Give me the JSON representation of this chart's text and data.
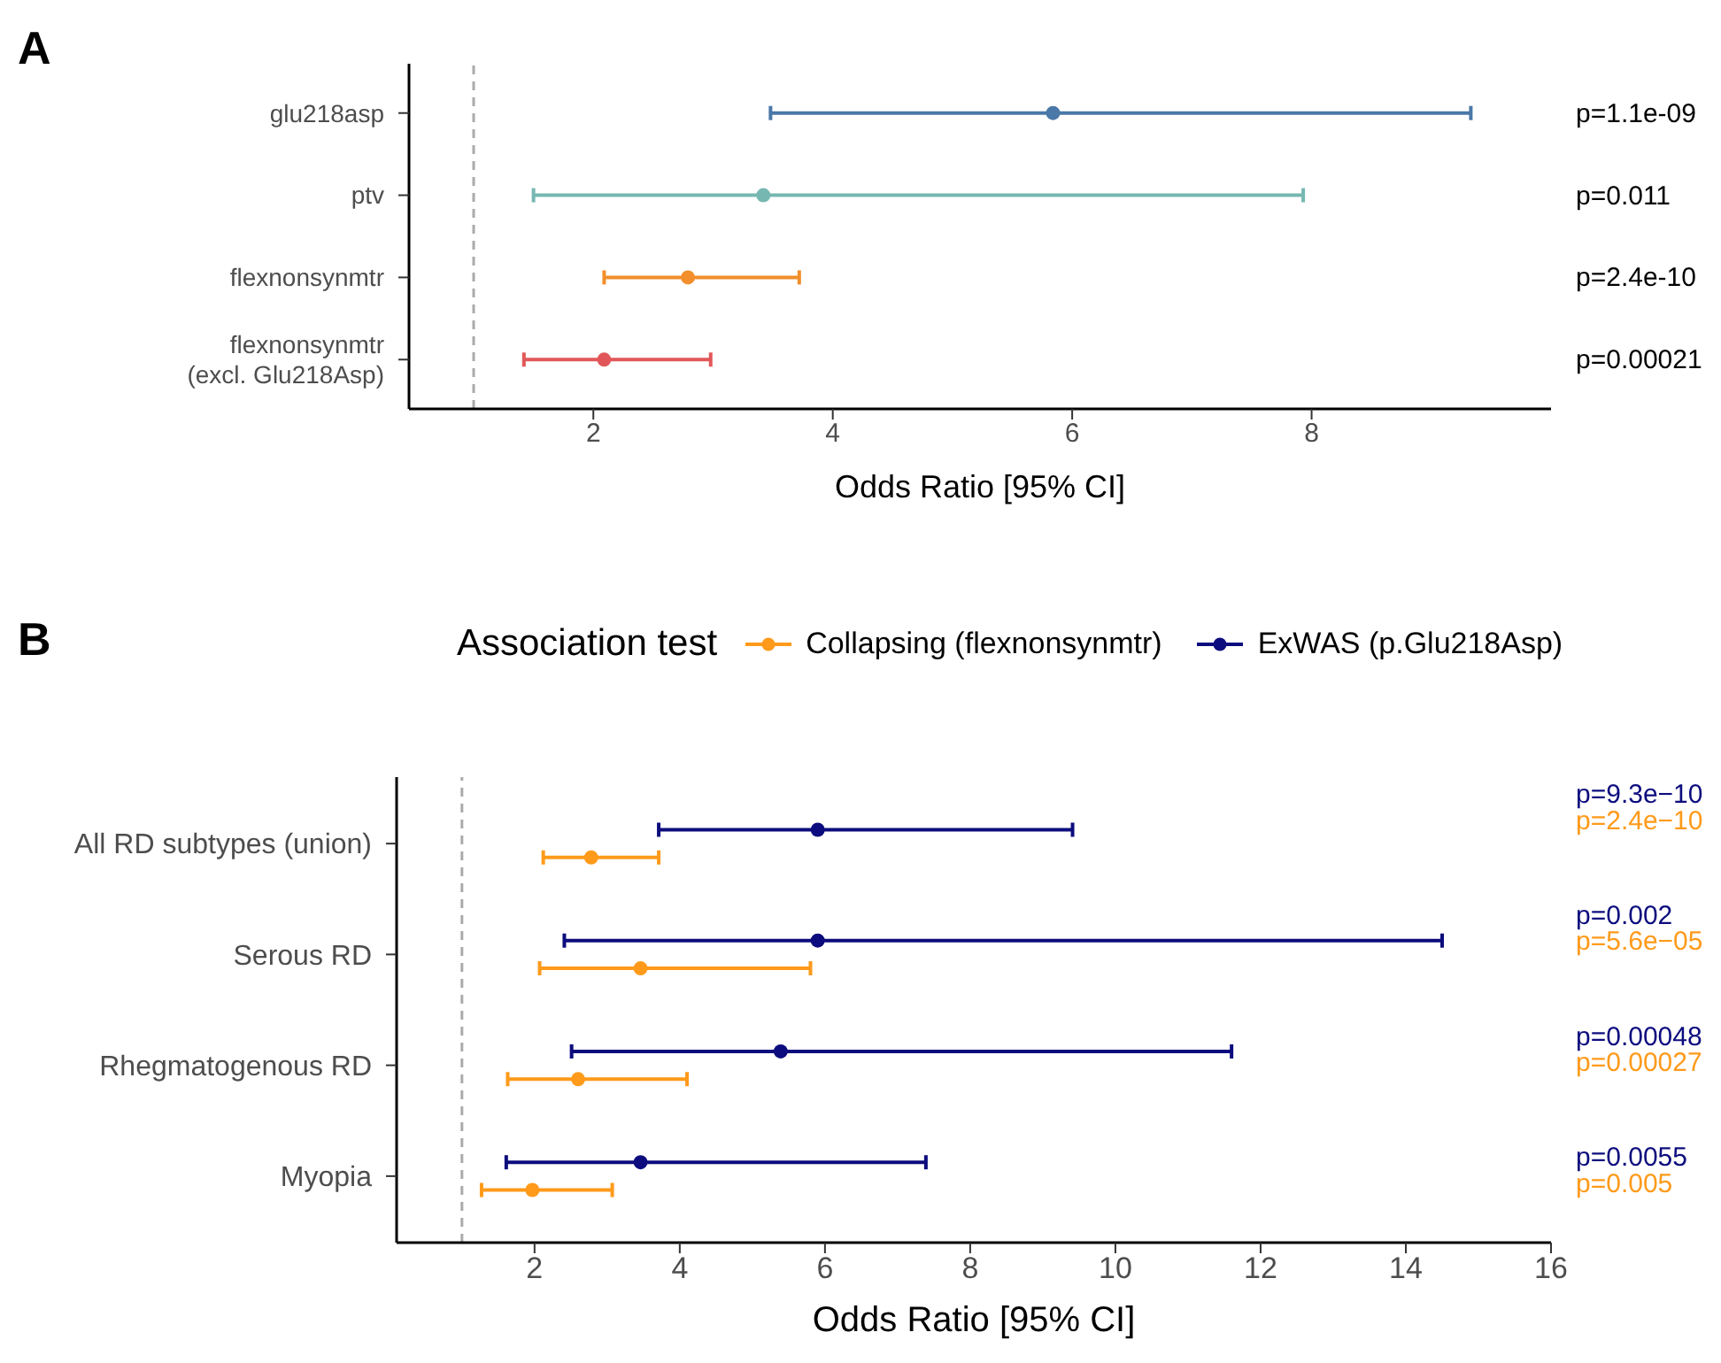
{
  "chart_data": [
    {
      "type": "scatter",
      "orientation": "horizontal",
      "title": "A",
      "xlabel": "Odds Ratio [95% CI]",
      "categories": [
        "glu218asp",
        "ptv",
        "flexnonsynmtr",
        "flexnonsynmtr\n(excl. Glu218Asp)"
      ],
      "xlim": [
        0.46,
        10.0
      ],
      "xticks": [
        2,
        4,
        6,
        8
      ],
      "marker": "circle",
      "series": [
        {
          "values": [
            5.84,
            3.42,
            2.79,
            2.09
          ],
          "errors": [
            [
              3.48,
              9.33
            ],
            [
              1.5,
              7.93
            ],
            [
              2.09,
              3.72
            ],
            [
              1.42,
              2.98
            ]
          ],
          "colors": [
            "#4a78a8",
            "#76b7b2",
            "#f28e2b",
            "#e15759"
          ]
        }
      ],
      "annotations": [
        "p=1.1e-09",
        "p=0.011",
        "p=2.4e-10",
        "p=0.00021"
      ],
      "ref_lines": [
        {
          "axis": "x",
          "value": 1,
          "color": "#aaaaaa",
          "line_style": "dashed"
        }
      ]
    },
    {
      "type": "scatter",
      "orientation": "horizontal",
      "title": "B",
      "xlabel": "Odds Ratio [95% CI]",
      "legend_title": "Association test",
      "legend": "top",
      "categories": [
        "All RD subtypes (union)",
        "Serous RD",
        "Rhegmatogenous RD",
        "Myopia"
      ],
      "xlim": [
        0.1,
        16
      ],
      "xticks": [
        2,
        4,
        6,
        8,
        10,
        12,
        14,
        16
      ],
      "marker": "circle",
      "series": [
        {
          "name": "Collapsing (flexnonsynmtr)",
          "color": "#ff9a1a",
          "values": [
            2.78,
            3.46,
            2.6,
            1.97
          ],
          "errors": [
            [
              2.12,
              3.71
            ],
            [
              2.07,
              5.8
            ],
            [
              1.63,
              4.1
            ],
            [
              1.27,
              3.07
            ]
          ]
        },
        {
          "name": "ExWAS (p.Glu218Asp)",
          "color": "#0c0c7e",
          "values": [
            5.9,
            5.9,
            5.39,
            3.46
          ],
          "errors": [
            [
              3.71,
              9.41
            ],
            [
              2.41,
              14.5
            ],
            [
              2.51,
              11.6
            ],
            [
              1.61,
              7.39
            ]
          ]
        }
      ],
      "annotations": [
        "p=2.4e−10",
        "p=9.3e−10",
        "p=5.6e−05",
        "p=0.002",
        "p=0.00027",
        "p=0.00048",
        "p=0.005",
        "p=0.0055"
      ],
      "ref_lines": [
        {
          "axis": "x",
          "value": 1,
          "color": "#aaaaaa",
          "line_style": "dashed"
        }
      ]
    }
  ]
}
